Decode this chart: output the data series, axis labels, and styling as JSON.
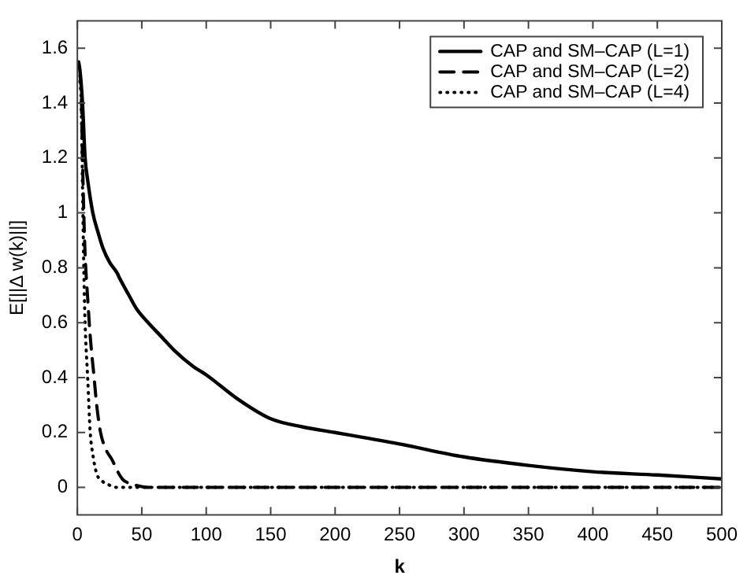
{
  "chart_data": {
    "type": "line",
    "xlabel": "k",
    "ylabel": "E[||Δ w(k)||]",
    "xlim": [
      0,
      500
    ],
    "xticks": [
      0,
      50,
      100,
      150,
      200,
      250,
      300,
      350,
      400,
      450,
      500
    ],
    "ylim": [
      -0.1,
      1.7
    ],
    "yticks": [
      0,
      0.2,
      0.4,
      0.6,
      0.8,
      1,
      1.2,
      1.4,
      1.6
    ],
    "grid": false,
    "legend": "top right",
    "marker": "none",
    "series": [
      {
        "name": "CAP and SM–CAP (L=1)",
        "color": "#000000",
        "line_style": "solid",
        "x": [
          1,
          2,
          4,
          6,
          8,
          12,
          16,
          20,
          25,
          31,
          33,
          40,
          46,
          55,
          65,
          75,
          90,
          100,
          125,
          150,
          175,
          200,
          250,
          300,
          350,
          400,
          450,
          500
        ],
        "values": [
          1.55,
          1.52,
          1.4,
          1.2,
          1.12,
          1.0,
          0.93,
          0.87,
          0.82,
          0.78,
          0.76,
          0.7,
          0.65,
          0.6,
          0.55,
          0.5,
          0.44,
          0.41,
          0.32,
          0.25,
          0.22,
          0.2,
          0.158,
          0.111,
          0.08,
          0.057,
          0.045,
          0.031
        ]
      },
      {
        "name": "CAP and SM–CAP (L=2)",
        "color": "#000000",
        "line_style": "dashed",
        "x": [
          2,
          3,
          4,
          5,
          6,
          8,
          10,
          13,
          15,
          18,
          22,
          27,
          31,
          35,
          40,
          45,
          55,
          100,
          200,
          300,
          400,
          500
        ],
        "values": [
          1.5,
          1.45,
          1.2,
          1.0,
          0.85,
          0.69,
          0.55,
          0.4,
          0.3,
          0.2,
          0.14,
          0.1,
          0.06,
          0.03,
          0.015,
          0.008,
          0.0,
          0.0,
          0.0,
          0.0,
          0.0,
          0.0
        ]
      },
      {
        "name": "CAP and SM–CAP (L=4)",
        "color": "#000000",
        "line_style": "dotted",
        "x": [
          2,
          3,
          4,
          5,
          6,
          8,
          10,
          12,
          15,
          20,
          25,
          30,
          40,
          100,
          200,
          300,
          400,
          500
        ],
        "values": [
          1.48,
          1.4,
          1.1,
          0.8,
          0.6,
          0.4,
          0.2,
          0.12,
          0.05,
          0.02,
          0.008,
          0.0,
          0.0,
          0.0,
          0.0,
          0.0,
          0.0,
          0.0
        ]
      }
    ]
  }
}
